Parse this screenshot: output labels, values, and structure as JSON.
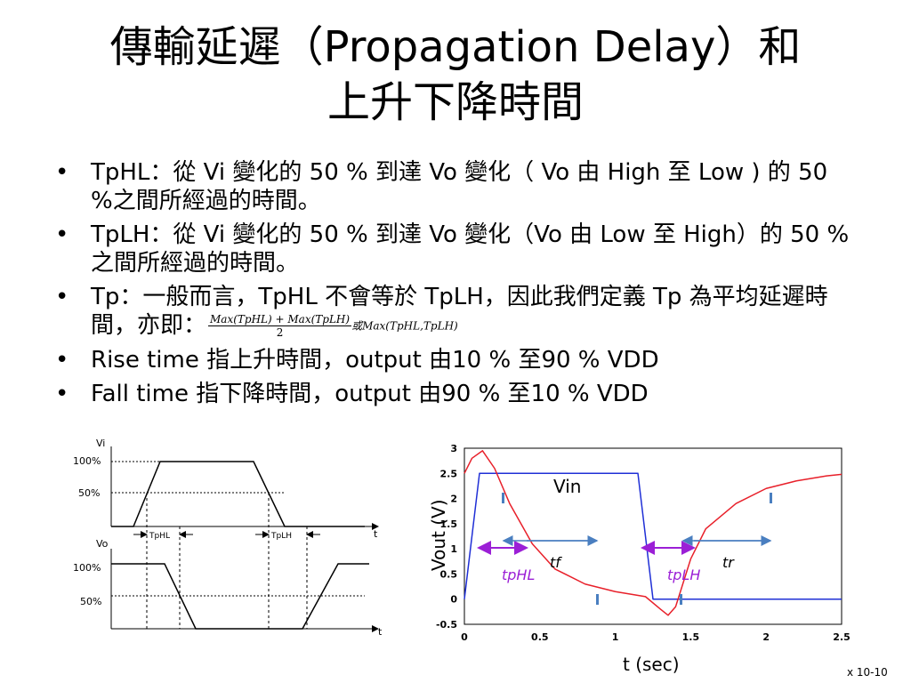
{
  "title": {
    "line1": "傳輸延遲（Propagation  Delay）和",
    "line2": "上升下降時間"
  },
  "bullets": [
    {
      "text": "TpHL：從 Vi 變化的 50 % 到達 Vo 變化（ Vo 由 High 至 Low ) 的 50 %之間所經過的時間。"
    },
    {
      "text": "TpLH：從 Vi 變化的 50 % 到達 Vo 變化（Vo 由 Low 至 High）的 50 %之間所經過的時間。"
    },
    {
      "text": "Tp：一般而言，TpHL 不會等於 TpLH，因此我們定義 Tp 為平均延遲時間，亦即：",
      "formula_num": "Max(TpHL) + Max(TpLH)",
      "formula_den": "2",
      "formula_alt": "或Max(TpHL,TpLH)"
    },
    {
      "text": "Rise time 指上升時間，output 由10 % 至90 %  VDD"
    },
    {
      "text": "Fall time  指下降時間，output 由90 % 至10 %  VDD"
    }
  ],
  "left_diagram": {
    "vi_label": "Vi",
    "vo_label": "Vo",
    "t_label": "t",
    "vi_100": "100%",
    "vi_50": "50%",
    "vo_100": "100%",
    "vo_50": "50%",
    "tphl": "TpHL",
    "tplh": "TpLH"
  },
  "right_chart": {
    "yticks": [
      "3",
      "2.5",
      "2",
      "1.5",
      "1",
      "0.5",
      "0",
      "-0.5"
    ],
    "xticks": [
      "0",
      "0.5",
      "1",
      "1.5",
      "2",
      "2.5"
    ],
    "ylabel": "Vout (V)",
    "xlabel": "t (sec)",
    "scale": "x 10-10",
    "vin": "Vin",
    "tphl": "tpHL",
    "tf": "tf",
    "tplh": "tpLH",
    "tr": "tr",
    "colors": {
      "vin": "#1f2fd6",
      "vout": "#e8202a",
      "marker": "#9b1fd6",
      "arrow": "#4a7fc0"
    }
  },
  "chart_data": {
    "type": "line",
    "xlabel": "t (sec)",
    "ylabel": "Vout (V)",
    "xlim": [
      0,
      2.5
    ],
    "ylim": [
      -0.5,
      3
    ],
    "series": [
      {
        "name": "Vin",
        "x": [
          0,
          0.1,
          1.15,
          1.25,
          2.5
        ],
        "values": [
          0,
          2.5,
          2.5,
          0,
          0
        ]
      },
      {
        "name": "Vout",
        "x": [
          0,
          0.05,
          0.12,
          0.2,
          0.3,
          0.45,
          0.6,
          0.8,
          1.0,
          1.2,
          1.3,
          1.35,
          1.4,
          1.5,
          1.6,
          1.8,
          2.0,
          2.2,
          2.4,
          2.5
        ],
        "values": [
          2.5,
          2.8,
          2.95,
          2.6,
          1.9,
          1.1,
          0.6,
          0.3,
          0.15,
          0.05,
          -0.2,
          -0.32,
          -0.15,
          0.8,
          1.4,
          1.9,
          2.2,
          2.35,
          2.45,
          2.48
        ]
      }
    ]
  }
}
